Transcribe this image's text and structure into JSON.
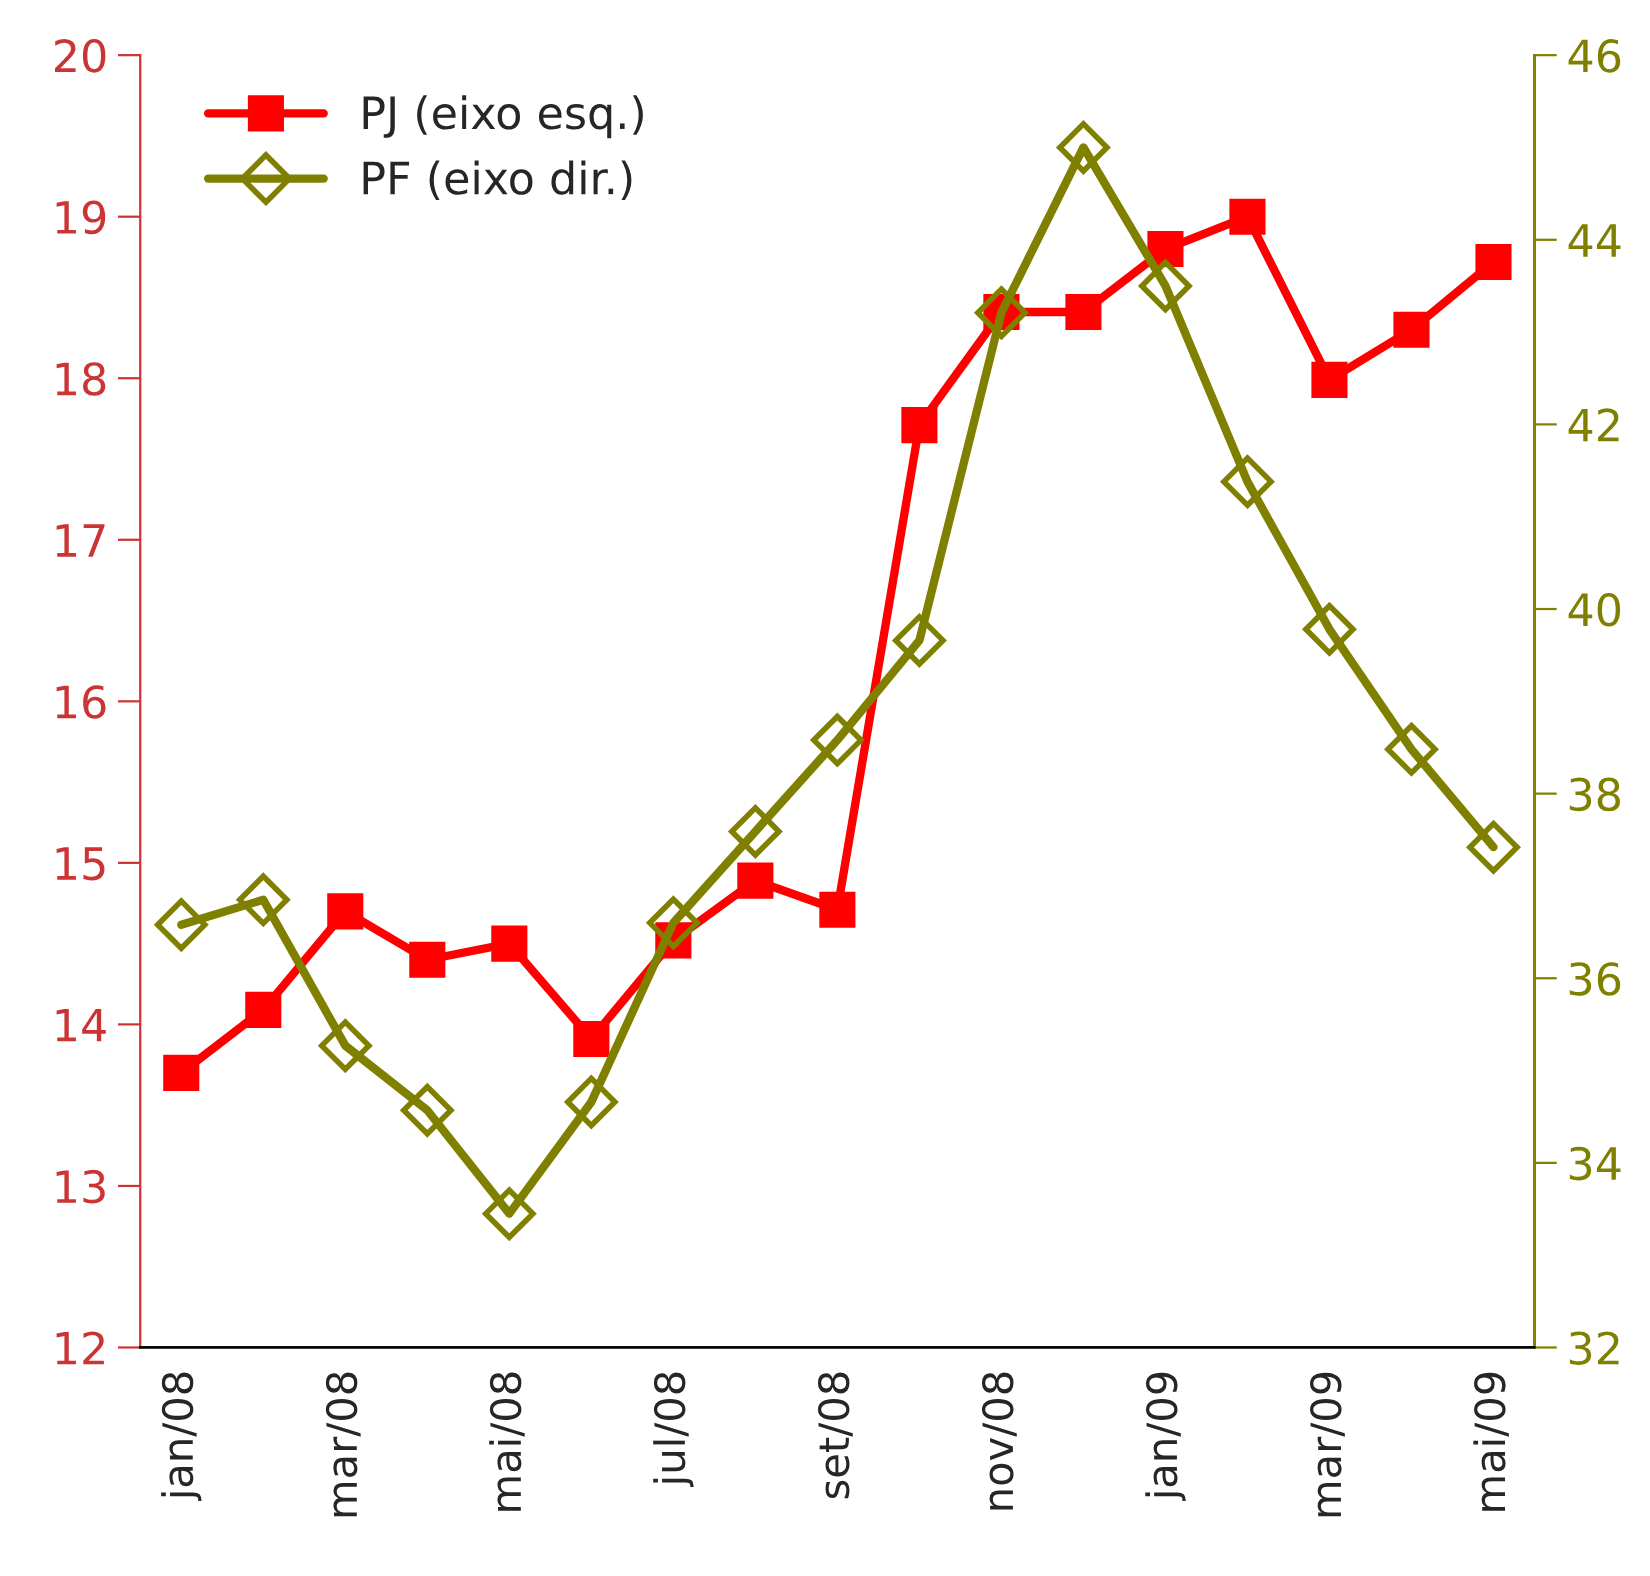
{
  "chart_data": {
    "type": "line",
    "categories": [
      "jan/08",
      null,
      "mar/08",
      null,
      "mai/08",
      null,
      "jul/08",
      null,
      "set/08",
      null,
      "nov/08",
      null,
      "jan/09",
      null,
      "mar/09",
      null,
      "mai/09"
    ],
    "series": [
      {
        "name": "PJ (eixo esq.)",
        "color": "#ff0000",
        "marker": "square",
        "values": [
          13.7,
          14.09,
          14.7,
          14.4,
          14.5,
          13.91,
          14.52,
          14.89,
          14.71,
          17.71,
          18.41,
          18.41,
          18.8,
          19.0,
          17.99,
          18.3,
          18.72
        ]
      },
      {
        "name": "PF (eixo dir.)",
        "color": "#808000",
        "marker": "diamond",
        "axis": "y2",
        "values": [
          36.58,
          36.85,
          35.27,
          34.57,
          33.45,
          34.66,
          36.6,
          37.59,
          38.58,
          39.66,
          43.21,
          45.0,
          43.5,
          41.38,
          39.78,
          38.48,
          37.42
        ]
      }
    ],
    "ylim": [
      12,
      20
    ],
    "yticks": [
      12,
      13,
      14,
      15,
      16,
      17,
      18,
      19,
      20
    ],
    "y2lim": [
      32,
      46
    ],
    "y2ticks": [
      32,
      34,
      36,
      38,
      40,
      42,
      44,
      46
    ],
    "legend": "top left",
    "grid": false
  }
}
